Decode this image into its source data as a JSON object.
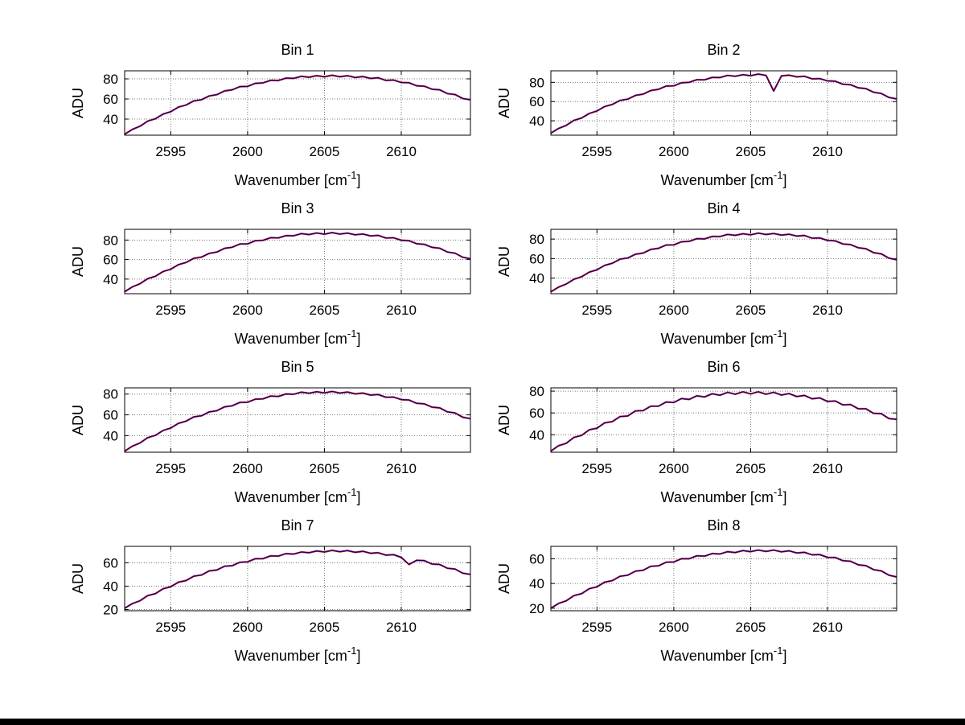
{
  "page": {
    "background": "#ffffff",
    "bottom_bar_color": "#000000"
  },
  "chart_data": {
    "type": "line",
    "layout": {
      "rows": 4,
      "cols": 2,
      "grid": "dotted",
      "legend": false
    },
    "x_label_parts": {
      "main": "Wavenumber [cm",
      "sup": "-1",
      "close": "]"
    },
    "y_label": "ADU",
    "x_lim": [
      2592,
      2614.5
    ],
    "x_ticks": [
      2595,
      2600,
      2605,
      2610
    ],
    "line_color": "#00008b",
    "fit_color": "#cc2020",
    "grid_color": "#777777",
    "axis_color": "#000000",
    "x": [
      2592,
      2592.5,
      2593,
      2593.5,
      2594,
      2594.5,
      2595,
      2595.5,
      2596,
      2596.5,
      2597,
      2597.5,
      2598,
      2598.5,
      2599,
      2599.5,
      2600,
      2600.5,
      2601,
      2601.5,
      2602,
      2602.5,
      2603,
      2603.5,
      2604,
      2604.5,
      2605,
      2605.5,
      2606,
      2606.5,
      2607,
      2607.5,
      2608,
      2608.5,
      2609,
      2609.5,
      2610,
      2610.5,
      2611,
      2611.5,
      2612,
      2612.5,
      2613,
      2613.5,
      2614,
      2614.5
    ],
    "subplots": [
      {
        "title": "Bin 1",
        "y_ticks": [
          40,
          60,
          80
        ],
        "y_lim": [
          24,
          88
        ],
        "values": [
          25.0,
          29.8,
          32.9,
          38.0,
          40.3,
          45.0,
          47.4,
          51.9,
          54.0,
          58.1,
          59.3,
          63.0,
          64.3,
          68.0,
          69.1,
          72.3,
          72.5,
          75.5,
          76.0,
          78.6,
          78.3,
          80.7,
          80.5,
          82.6,
          81.6,
          83.2,
          82.0,
          83.6,
          82.1,
          83.1,
          81.4,
          82.3,
          80.4,
          81.1,
          78.4,
          78.8,
          76.4,
          76.2,
          73.1,
          72.7,
          69.7,
          69.1,
          65.4,
          64.4,
          60.5,
          59.2
        ]
      },
      {
        "title": "Bin 2",
        "y_ticks": [
          40,
          60,
          80
        ],
        "y_lim": [
          25,
          92
        ],
        "values": [
          27.1,
          32.0,
          35.2,
          40.4,
          42.8,
          47.6,
          50.2,
          54.8,
          57.0,
          61.2,
          62.5,
          66.4,
          67.7,
          71.5,
          72.7,
          76.1,
          76.3,
          79.5,
          80.0,
          82.8,
          82.6,
          85.1,
          85.0,
          87.2,
          86.3,
          88.0,
          86.9,
          88.6,
          87.2,
          71.0,
          86.6,
          87.5,
          85.7,
          86.3,
          83.6,
          83.9,
          81.5,
          81.2,
          78.0,
          77.5,
          74.3,
          73.5,
          69.7,
          68.4,
          64.3,
          62.8
        ]
      },
      {
        "title": "Bin 3",
        "y_ticks": [
          40,
          60,
          80
        ],
        "y_lim": [
          25,
          91
        ],
        "values": [
          27.0,
          32.0,
          35.2,
          40.4,
          42.9,
          47.7,
          50.2,
          54.8,
          57.0,
          61.3,
          62.5,
          66.3,
          67.7,
          71.5,
          72.6,
          76.0,
          76.1,
          79.3,
          79.7,
          82.4,
          82.2,
          84.6,
          84.4,
          86.6,
          85.6,
          87.2,
          86.0,
          87.6,
          86.1,
          87.1,
          85.4,
          86.2,
          84.2,
          84.8,
          82.1,
          82.3,
          79.8,
          79.4,
          76.2,
          75.6,
          72.5,
          71.6,
          67.7,
          66.5,
          62.4,
          60.8
        ]
      },
      {
        "title": "Bin 4",
        "y_ticks": [
          40,
          60,
          80
        ],
        "y_lim": [
          24,
          90
        ],
        "values": [
          26.0,
          30.8,
          33.9,
          38.8,
          41.4,
          46.1,
          48.5,
          53.0,
          55.2,
          59.4,
          60.6,
          64.4,
          65.7,
          69.4,
          70.5,
          73.9,
          74.1,
          77.2,
          77.7,
          80.4,
          80.2,
          82.7,
          82.6,
          84.8,
          83.8,
          85.5,
          84.4,
          86.1,
          84.7,
          85.7,
          84.1,
          85.0,
          83.1,
          83.7,
          80.9,
          81.2,
          78.6,
          78.2,
          75.0,
          74.3,
          71.1,
          70.1,
          66.1,
          64.8,
          60.5,
          58.8
        ]
      },
      {
        "title": "Bin 5",
        "y_ticks": [
          40,
          60,
          80
        ],
        "y_lim": [
          24,
          86
        ],
        "values": [
          25.0,
          29.8,
          32.9,
          38.0,
          40.3,
          44.9,
          47.3,
          51.8,
          53.9,
          58.0,
          59.1,
          62.8,
          64.0,
          67.7,
          68.7,
          72.0,
          72.1,
          75.1,
          75.4,
          78.1,
          77.7,
          80.1,
          79.8,
          81.9,
          80.8,
          82.3,
          81.1,
          82.6,
          81.0,
          82.0,
          80.2,
          81.0,
          79.0,
          79.6,
          76.9,
          77.1,
          74.7,
          74.3,
          71.1,
          70.6,
          67.4,
          66.7,
          62.9,
          61.8,
          57.7,
          56.3
        ]
      },
      {
        "title": "Bin 6",
        "y_ticks": [
          40,
          60,
          80
        ],
        "y_lim": [
          24,
          83
        ],
        "values": [
          25.0,
          30.0,
          32.2,
          37.6,
          39.4,
          44.6,
          46.0,
          50.9,
          52.0,
          56.7,
          57.2,
          61.8,
          62.1,
          66.2,
          66.2,
          70.0,
          69.6,
          73.2,
          72.4,
          75.7,
          74.7,
          77.6,
          76.2,
          78.9,
          77.2,
          79.4,
          77.5,
          79.4,
          77.2,
          78.9,
          76.4,
          77.8,
          75.0,
          76.1,
          73.0,
          73.8,
          70.5,
          71.0,
          67.4,
          67.7,
          63.8,
          63.8,
          59.6,
          59.3,
          54.8,
          54.2
        ]
      },
      {
        "title": "Bin 7",
        "y_ticks": [
          20,
          40,
          60
        ],
        "y_lim": [
          19,
          74
        ],
        "values": [
          21.1,
          25.1,
          27.5,
          31.9,
          33.6,
          37.8,
          39.5,
          43.4,
          44.8,
          48.5,
          49.5,
          53.0,
          53.8,
          57.0,
          57.5,
          60.4,
          60.8,
          63.4,
          63.5,
          65.9,
          65.7,
          67.8,
          67.4,
          69.2,
          68.6,
          70.1,
          69.2,
          70.6,
          69.4,
          70.4,
          68.9,
          69.8,
          68.1,
          68.6,
          66.5,
          66.9,
          64.6,
          58.5,
          62.1,
          61.8,
          58.9,
          58.5,
          55.3,
          54.6,
          51.1,
          50.1
        ]
      },
      {
        "title": "Bin 8",
        "y_ticks": [
          20,
          40,
          60
        ],
        "y_lim": [
          18,
          70
        ],
        "values": [
          20.0,
          23.9,
          26.0,
          30.2,
          31.8,
          35.8,
          37.3,
          41.1,
          42.3,
          45.8,
          46.7,
          50.0,
          50.7,
          53.9,
          54.3,
          57.2,
          57.4,
          60.0,
          60.0,
          62.4,
          62.1,
          64.2,
          63.8,
          65.7,
          65.0,
          66.6,
          65.7,
          67.0,
          65.9,
          67.0,
          65.6,
          66.4,
          64.7,
          65.2,
          63.2,
          63.4,
          61.1,
          61.0,
          58.4,
          58.0,
          55.1,
          54.4,
          51.2,
          50.2,
          46.7,
          45.3
        ]
      }
    ]
  }
}
